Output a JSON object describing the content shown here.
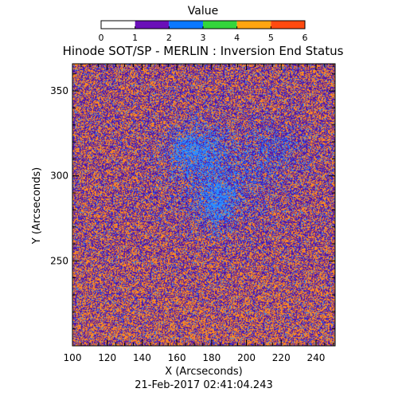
{
  "chart_data": {
    "type": "heatmap",
    "title": "Hinode SOT/SP - MERLIN : Inversion End Status",
    "xlabel": "X (Arcseconds)",
    "ylabel": "Y (Arcseconds)",
    "xlim": [
      100,
      251
    ],
    "ylim": [
      200,
      366
    ],
    "x_ticks": [
      100,
      120,
      140,
      160,
      180,
      200,
      220,
      240
    ],
    "y_ticks": [
      250,
      300,
      350
    ],
    "timestamp": "21-Feb-2017 02:41:04.243",
    "colorbar": {
      "label": "Value",
      "range": [
        0,
        6
      ],
      "ticks": [
        0,
        1,
        2,
        3,
        4,
        5,
        6
      ],
      "colors": [
        "#ffffff",
        "#6a0fb8",
        "#0a78ff",
        "#33d63c",
        "#ffa510",
        "#ff4a10"
      ]
    },
    "value_mix": {
      "dominant_values": [
        1,
        4
      ],
      "secondary_value": 2,
      "colors": {
        "1": "#4a13b0",
        "2": "#2b8cff",
        "4": "#ff8a1f"
      },
      "noise_fraction": {
        "1": 0.46,
        "2": 0.08,
        "4": 0.46
      },
      "blue_regions": [
        {
          "x": 170,
          "y": 315,
          "rx": 14,
          "ry": 12,
          "strength": 0.55
        },
        {
          "x": 183,
          "y": 285,
          "rx": 10,
          "ry": 14,
          "strength": 0.55
        },
        {
          "x": 190,
          "y": 300,
          "rx": 35,
          "ry": 30,
          "strength": 0.18
        },
        {
          "x": 218,
          "y": 318,
          "rx": 14,
          "ry": 14,
          "strength": 0.16
        }
      ]
    }
  }
}
